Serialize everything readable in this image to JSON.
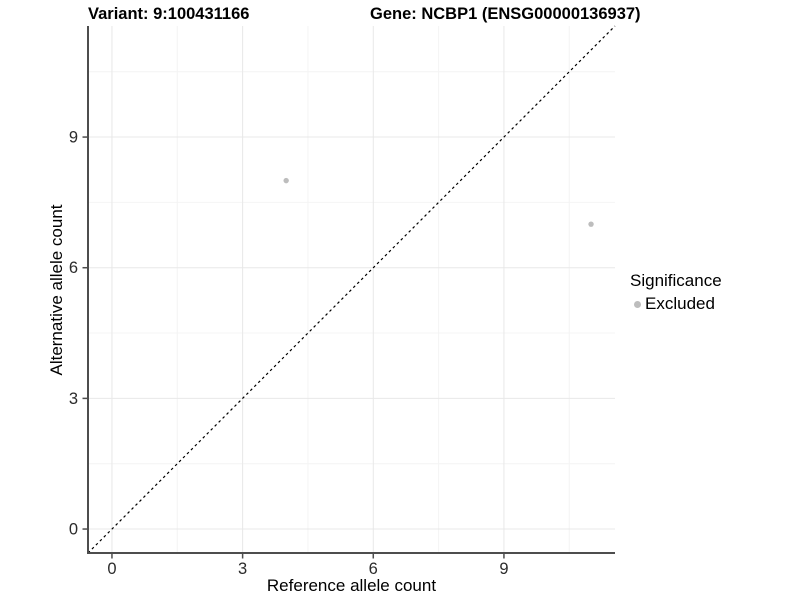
{
  "header": {
    "variant_title": "Variant: 9:100431166",
    "gene_title": "Gene: NCBP1 (ENSG00000136937)"
  },
  "legend": {
    "title": "Significance",
    "items": [
      {
        "label": "Excluded",
        "color": "#bdbdbd"
      }
    ]
  },
  "chart_data": {
    "type": "scatter",
    "xlabel": "Reference allele count",
    "ylabel": "Alternative allele count",
    "xlim": [
      -0.55,
      11.55
    ],
    "ylim": [
      -0.55,
      11.55
    ],
    "xticks": [
      0,
      3,
      6,
      9
    ],
    "yticks": [
      0,
      3,
      6,
      9
    ],
    "x_minor": [
      1.5,
      4.5,
      7.5,
      10.5
    ],
    "y_minor": [
      1.5,
      4.5,
      7.5,
      10.5
    ],
    "grid": true,
    "legend_position": "right",
    "points": [
      {
        "x": 4,
        "y": 8,
        "series": "Excluded"
      },
      {
        "x": 11,
        "y": 7,
        "series": "Excluded"
      }
    ],
    "identity_line": {
      "slope": 1,
      "intercept": 0,
      "style": "dashed",
      "color": "#000000"
    },
    "colors": {
      "point": "#bdbdbd",
      "axis_line": "#4d4d4d",
      "tick_label": "#2b2b2b",
      "grid_major": "#e8e8e8",
      "grid_minor": "#f4f4f4"
    }
  }
}
